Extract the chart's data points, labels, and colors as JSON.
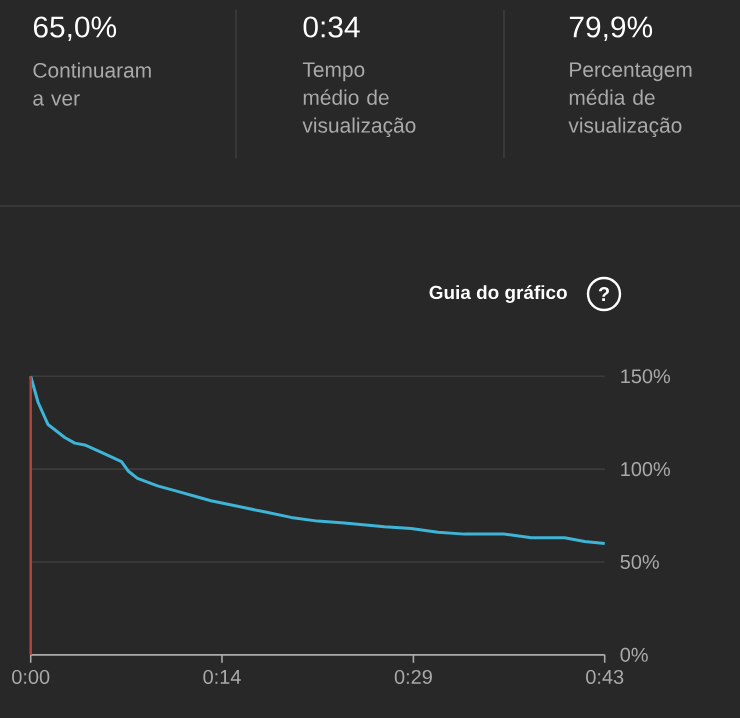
{
  "chart_data": {
    "type": "line",
    "x": [
      0,
      0.55,
      1.3,
      2.55,
      3.3,
      4.05,
      5.3,
      6.8,
      7.3,
      8.0,
      9.5,
      11.0,
      12.5,
      13.5,
      15.5,
      17.5,
      19.5,
      21.5,
      23.5,
      26.5,
      28.5,
      30.5,
      32.5,
      35.5,
      37.5,
      40.0,
      41.5,
      43
    ],
    "values": [
      150,
      136,
      124,
      117,
      114,
      113,
      109,
      104,
      99,
      95,
      91,
      88,
      85,
      83,
      80,
      77,
      74,
      72,
      71,
      69,
      68,
      66,
      65,
      65,
      63,
      63,
      61,
      60
    ],
    "color": "#3eb4d6",
    "xlim": [
      0,
      43
    ],
    "xticks": [
      {
        "value": 0,
        "label": "0:00"
      },
      {
        "value": 14.33,
        "label": "0:14"
      },
      {
        "value": 28.67,
        "label": "0:29"
      },
      {
        "value": 43,
        "label": "0:43"
      }
    ],
    "ylim": [
      0,
      150
    ],
    "yticks": [
      {
        "value": 0,
        "label": "0%"
      },
      {
        "value": 50,
        "label": "50%"
      },
      {
        "value": 100,
        "label": "100%"
      },
      {
        "value": 150,
        "label": "150%"
      }
    ],
    "grid": "y",
    "ref_lines": [
      {
        "axis": "x",
        "value": 0,
        "color": "#b5453f"
      }
    ],
    "annotations": [
      "65,0%",
      "Continuaram a ver",
      "0:34",
      "Tempo médio de visualização",
      "79,9%",
      "Percentagem média de visualização",
      "Guia do gráfico",
      "?"
    ]
  }
}
